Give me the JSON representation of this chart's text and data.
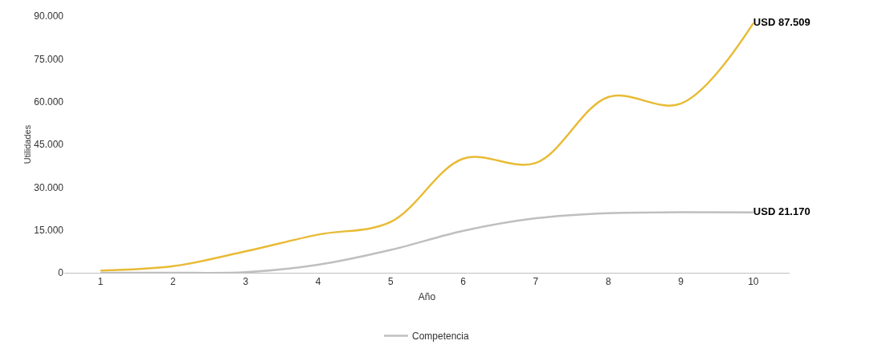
{
  "chart_data": {
    "type": "line",
    "xlabel": "Año",
    "ylabel": "Utilidades",
    "x": [
      1,
      2,
      3,
      4,
      5,
      6,
      7,
      8,
      9,
      10
    ],
    "series": [
      {
        "color": "#e8bb35",
        "values": [
          800,
          2300,
          7500,
          13400,
          17800,
          40000,
          38500,
          61600,
          59300,
          87509
        ],
        "value_labels": [
          null,
          null,
          null,
          null,
          null,
          null,
          null,
          null,
          null,
          "USD 87.509"
        ]
      },
      {
        "name": "Competencia",
        "color": "#bfbfbf",
        "values": [
          0,
          0,
          200,
          2800,
          8000,
          14700,
          19100,
          20900,
          21200,
          21170
        ],
        "value_labels": [
          null,
          null,
          null,
          null,
          null,
          null,
          null,
          null,
          null,
          "USD 21.170"
        ]
      }
    ],
    "xlim": [
      0.5,
      10.5
    ],
    "xticks": [
      1,
      2,
      3,
      4,
      5,
      6,
      7,
      8,
      9,
      10
    ],
    "ylim": [
      0,
      90000
    ],
    "yticks": [
      {
        "value": 0,
        "label": "0"
      },
      {
        "value": 15000,
        "label": "15.000"
      },
      {
        "value": 30000,
        "label": "30.000"
      },
      {
        "value": 45000,
        "label": "45.000"
      },
      {
        "value": 60000,
        "label": "60.000"
      },
      {
        "value": 75000,
        "label": "75.000"
      },
      {
        "value": 90000,
        "label": "90.000"
      }
    ],
    "grid": false,
    "legend": "bottom",
    "marker": "none",
    "line_style": "solid"
  }
}
